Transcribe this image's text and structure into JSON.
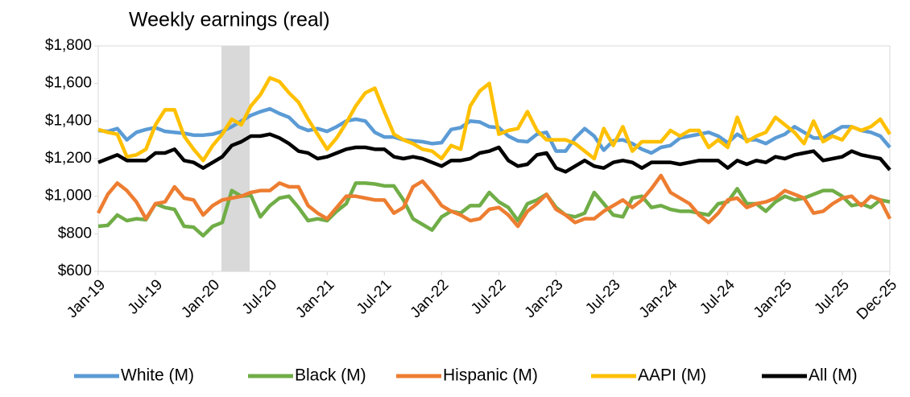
{
  "chart_data": {
    "type": "line",
    "title": "Weekly earnings (real)",
    "categories": [
      "Jan-19",
      null,
      null,
      null,
      null,
      null,
      "Jul-19",
      null,
      null,
      null,
      null,
      null,
      "Jan-20",
      null,
      null,
      null,
      null,
      null,
      "Jul-20",
      null,
      null,
      null,
      null,
      null,
      "Jan-21",
      null,
      null,
      null,
      null,
      null,
      "Jul-21",
      null,
      null,
      null,
      null,
      null,
      "Jan-22",
      null,
      null,
      null,
      null,
      null,
      "Jul-22",
      null,
      null,
      null,
      null,
      null,
      "Jan-23",
      null,
      null,
      null,
      null,
      null,
      "Jul-23",
      null,
      null,
      null,
      null,
      null,
      "Jan-24",
      null,
      null,
      null,
      null,
      null,
      "Jul-24",
      null,
      null,
      null,
      null,
      null,
      "Jan-25",
      null,
      null,
      null,
      null,
      null,
      "Jul-25",
      null,
      null,
      null,
      null,
      "Dec-25"
    ],
    "series": [
      {
        "name": "White (M)",
        "color": "#5b9bd5",
        "values": [
          1350,
          1345,
          1360,
          1300,
          1340,
          1355,
          1365,
          1345,
          1340,
          1335,
          1325,
          1325,
          1330,
          1345,
          1370,
          1400,
          1430,
          1450,
          1465,
          1440,
          1420,
          1370,
          1350,
          1360,
          1345,
          1370,
          1400,
          1410,
          1400,
          1340,
          1315,
          1315,
          1300,
          1295,
          1290,
          1280,
          1285,
          1355,
          1365,
          1400,
          1395,
          1370,
          1365,
          1320,
          1295,
          1290,
          1330,
          1340,
          1240,
          1240,
          1310,
          1360,
          1320,
          1245,
          1295,
          1300,
          1280,
          1250,
          1230,
          1260,
          1270,
          1310,
          1320,
          1330,
          1340,
          1320,
          1285,
          1330,
          1300,
          1300,
          1280,
          1310,
          1330,
          1370,
          1340,
          1310,
          1310,
          1340,
          1370,
          1370,
          1350,
          1340,
          1320,
          1260
        ]
      },
      {
        "name": "Black (M)",
        "color": "#70ad47",
        "values": [
          840,
          845,
          900,
          870,
          880,
          875,
          960,
          940,
          930,
          840,
          835,
          790,
          840,
          860,
          1030,
          1000,
          1005,
          890,
          950,
          990,
          1000,
          940,
          870,
          880,
          870,
          920,
          960,
          1070,
          1070,
          1065,
          1055,
          1055,
          980,
          880,
          850,
          820,
          890,
          920,
          910,
          950,
          950,
          1020,
          970,
          940,
          870,
          960,
          980,
          1010,
          940,
          900,
          890,
          910,
          1020,
          960,
          900,
          890,
          990,
          1000,
          940,
          950,
          930,
          920,
          920,
          910,
          900,
          960,
          970,
          1040,
          960,
          960,
          920,
          970,
          1000,
          980,
          990,
          1010,
          1030,
          1030,
          1000,
          950,
          960,
          940,
          980,
          970
        ]
      },
      {
        "name": "Hispanic (M)",
        "color": "#ed7d31",
        "values": [
          910,
          1010,
          1070,
          1030,
          970,
          880,
          960,
          970,
          1050,
          990,
          980,
          900,
          950,
          980,
          990,
          1000,
          1020,
          1030,
          1030,
          1070,
          1050,
          1050,
          950,
          910,
          880,
          940,
          1000,
          1000,
          990,
          980,
          980,
          910,
          940,
          1050,
          1080,
          1020,
          950,
          920,
          900,
          870,
          880,
          930,
          940,
          900,
          840,
          920,
          960,
          1010,
          930,
          900,
          860,
          880,
          880,
          920,
          950,
          980,
          940,
          980,
          1040,
          1110,
          1020,
          990,
          960,
          900,
          860,
          910,
          980,
          990,
          940,
          960,
          970,
          990,
          1030,
          1010,
          990,
          910,
          920,
          960,
          990,
          1000,
          950,
          1000,
          980,
          880
        ]
      },
      {
        "name": "AAPI (M)",
        "color": "#ffc000",
        "values": [
          1355,
          1340,
          1330,
          1210,
          1220,
          1250,
          1380,
          1460,
          1460,
          1320,
          1250,
          1190,
          1270,
          1330,
          1410,
          1380,
          1480,
          1540,
          1630,
          1610,
          1550,
          1500,
          1410,
          1330,
          1250,
          1310,
          1390,
          1480,
          1550,
          1575,
          1450,
          1330,
          1300,
          1280,
          1250,
          1240,
          1200,
          1270,
          1250,
          1480,
          1560,
          1600,
          1330,
          1350,
          1360,
          1450,
          1350,
          1300,
          1300,
          1300,
          1280,
          1240,
          1200,
          1360,
          1270,
          1370,
          1240,
          1290,
          1290,
          1290,
          1350,
          1320,
          1350,
          1350,
          1260,
          1300,
          1260,
          1420,
          1290,
          1320,
          1340,
          1420,
          1380,
          1340,
          1280,
          1400,
          1290,
          1320,
          1300,
          1370,
          1350,
          1370,
          1410,
          1330
        ]
      },
      {
        "name": "All (M)",
        "color": "#000000",
        "values": [
          1180,
          1200,
          1220,
          1190,
          1190,
          1190,
          1230,
          1230,
          1250,
          1190,
          1180,
          1150,
          1180,
          1210,
          1270,
          1290,
          1320,
          1320,
          1330,
          1310,
          1280,
          1240,
          1230,
          1200,
          1210,
          1230,
          1250,
          1260,
          1260,
          1250,
          1250,
          1210,
          1200,
          1210,
          1200,
          1180,
          1160,
          1190,
          1190,
          1200,
          1230,
          1240,
          1260,
          1190,
          1160,
          1170,
          1220,
          1230,
          1150,
          1130,
          1160,
          1190,
          1160,
          1150,
          1180,
          1190,
          1180,
          1150,
          1180,
          1180,
          1180,
          1170,
          1180,
          1190,
          1190,
          1190,
          1150,
          1190,
          1170,
          1190,
          1180,
          1210,
          1200,
          1220,
          1230,
          1240,
          1190,
          1200,
          1210,
          1240,
          1220,
          1210,
          1200,
          1140
        ]
      }
    ],
    "ylim": [
      600,
      1800
    ],
    "yticks": [
      {
        "value": 600,
        "label": "$600"
      },
      {
        "value": 800,
        "label": "$800"
      },
      {
        "value": 1000,
        "label": "$1,000"
      },
      {
        "value": 1200,
        "label": "$1,200"
      },
      {
        "value": 1400,
        "label": "$1,400"
      },
      {
        "value": 1600,
        "label": "$1,600"
      },
      {
        "value": 1800,
        "label": "$1,800"
      }
    ],
    "legend": "bottom"
  }
}
